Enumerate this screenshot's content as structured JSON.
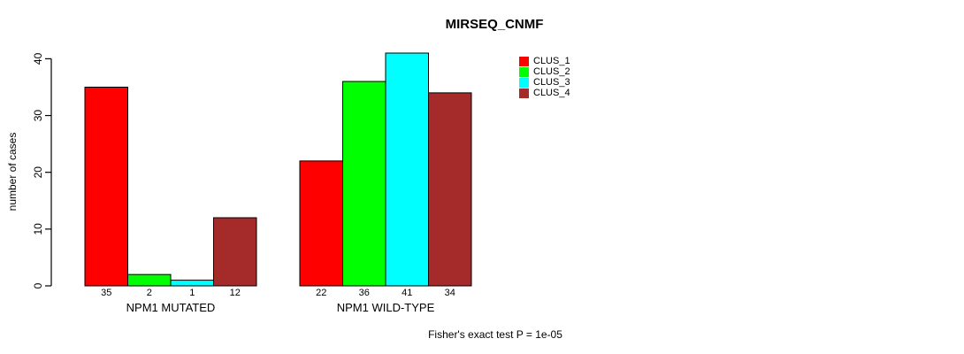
{
  "chart_data": {
    "type": "bar",
    "title": "MIRSEQ_CNMF",
    "ylabel": "number of cases",
    "xlabel": "",
    "ylim": [
      0,
      40
    ],
    "yticks": [
      0,
      10,
      20,
      30,
      40
    ],
    "grid": false,
    "legend_position": "right-outside",
    "categories": [
      "NPM1 MUTATED",
      "NPM1 WILD-TYPE"
    ],
    "groups": [
      {
        "label": "NPM1 MUTATED",
        "values": [
          35,
          2,
          1,
          12
        ]
      },
      {
        "label": "NPM1 WILD-TYPE",
        "values": [
          22,
          36,
          41,
          34
        ]
      }
    ],
    "series": [
      {
        "name": "CLUS_1",
        "values": [
          35,
          22
        ],
        "color": "#ff0000"
      },
      {
        "name": "CLUS_2",
        "values": [
          2,
          36
        ],
        "color": "#00ff00"
      },
      {
        "name": "CLUS_3",
        "values": [
          1,
          41
        ],
        "color": "#00ffff"
      },
      {
        "name": "CLUS_4",
        "values": [
          12,
          34
        ],
        "color": "#a52a2a"
      }
    ],
    "legend": [
      {
        "label": "CLUS_1",
        "color": "#ff0000"
      },
      {
        "label": "CLUS_2",
        "color": "#00ff00"
      },
      {
        "label": "CLUS_3",
        "color": "#00ffff"
      },
      {
        "label": "CLUS_4",
        "color": "#a52a2a"
      }
    ],
    "bar_border_color": "#000000",
    "axis_color": "#000000",
    "footnote": "Fisher's exact test P = 1e-05"
  }
}
